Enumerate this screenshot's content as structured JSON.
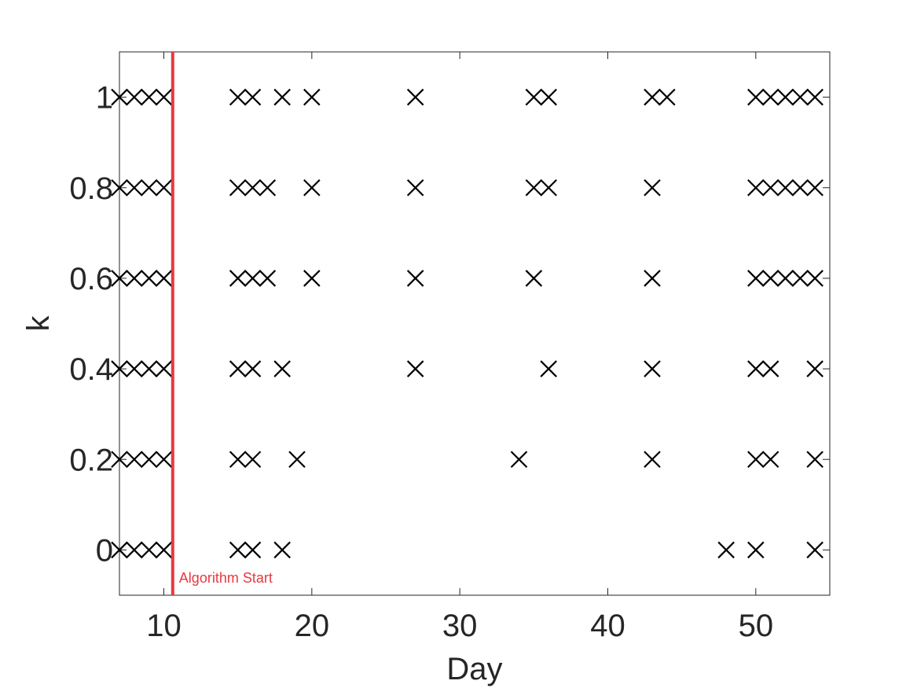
{
  "chart_data": {
    "type": "scatter",
    "title": "",
    "xlabel": "Day",
    "ylabel": "k",
    "xlim": [
      7,
      55
    ],
    "ylim": [
      -0.1,
      1.1
    ],
    "xticks": [
      "10",
      "20",
      "30",
      "40",
      "50"
    ],
    "xtick_values": [
      10,
      20,
      30,
      40,
      50
    ],
    "yticks": [
      "0",
      "0.2",
      "0.4",
      "0.6",
      "0.8",
      "1"
    ],
    "ytick_values": [
      0,
      0.2,
      0.4,
      0.6,
      0.8,
      1
    ],
    "grid": false,
    "marker": "x",
    "marker_color": "#000000",
    "series": [
      {
        "y": 1,
        "x": [
          7,
          8,
          9,
          10,
          15,
          16,
          18,
          20,
          27,
          35,
          36,
          43,
          44,
          50,
          51,
          52,
          53,
          54
        ]
      },
      {
        "y": 0.8,
        "x": [
          7,
          8,
          9,
          10,
          15,
          16,
          17,
          20,
          27,
          35,
          36,
          43,
          50,
          51,
          52,
          53,
          54
        ]
      },
      {
        "y": 0.6,
        "x": [
          7,
          8,
          9,
          10,
          15,
          16,
          17,
          20,
          27,
          35,
          43,
          50,
          51,
          52,
          53,
          54
        ]
      },
      {
        "y": 0.4,
        "x": [
          7,
          8,
          9,
          10,
          15,
          16,
          18,
          27,
          36,
          43,
          50,
          51,
          54
        ]
      },
      {
        "y": 0.2,
        "x": [
          7,
          8,
          9,
          10,
          15,
          16,
          19,
          34,
          43,
          50,
          51,
          54
        ]
      },
      {
        "y": 0,
        "x": [
          7,
          8,
          9,
          10,
          15,
          16,
          18,
          48,
          50,
          54
        ]
      }
    ],
    "vline": {
      "x": 10.6,
      "label": "Algorithm Start",
      "color": "#e8393e"
    }
  }
}
